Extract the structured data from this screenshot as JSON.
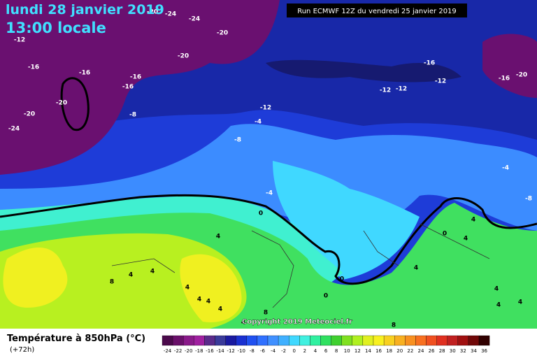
{
  "header": {
    "date": "lundi 28 janvier 2019",
    "time": "13:00 locale",
    "run": "Run ECMWF 12Z du vendredi 25 janvier 2019"
  },
  "contour_labels": [
    -20,
    -24,
    -24,
    -20,
    -12,
    -20,
    -16,
    -16,
    -16,
    -16,
    -20,
    -20,
    -24,
    -8,
    -16,
    -20,
    -16,
    -12,
    -12,
    -12,
    -12,
    -4,
    -8,
    -4,
    -4,
    -8,
    0,
    4,
    4,
    4,
    0,
    4,
    8,
    4,
    4,
    4,
    4,
    4,
    4,
    0,
    0,
    4,
    4,
    4,
    8,
    4,
    8
  ],
  "copyright": "Copyright 2019 Meteociel.fr",
  "legend": {
    "title": "Température à 850hPa (°C)",
    "subtitle": "(+72h)",
    "values": [
      -24,
      -22,
      -20,
      -18,
      -16,
      -14,
      -12,
      -10,
      -8,
      -6,
      -4,
      -2,
      0,
      2,
      4,
      6,
      8,
      10,
      12,
      14,
      16,
      18,
      20,
      22,
      24,
      26,
      28,
      30,
      32,
      34,
      36
    ],
    "colors": [
      "#4b0a4b",
      "#6a106a",
      "#8a1a8a",
      "#a020a0",
      "#5a2a8a",
      "#3a3a9a",
      "#1a1aa0",
      "#1a30d0",
      "#2050f0",
      "#3070ff",
      "#4090ff",
      "#40b0ff",
      "#40d8ff",
      "#40f0e0",
      "#30f0a0",
      "#30e060",
      "#40d030",
      "#80e020",
      "#b0f020",
      "#e0f020",
      "#f8f020",
      "#f8d020",
      "#f8b020",
      "#f89020",
      "#f87020",
      "#f05020",
      "#e03020",
      "#c02020",
      "#a01010",
      "#700808",
      "#300000"
    ]
  }
}
